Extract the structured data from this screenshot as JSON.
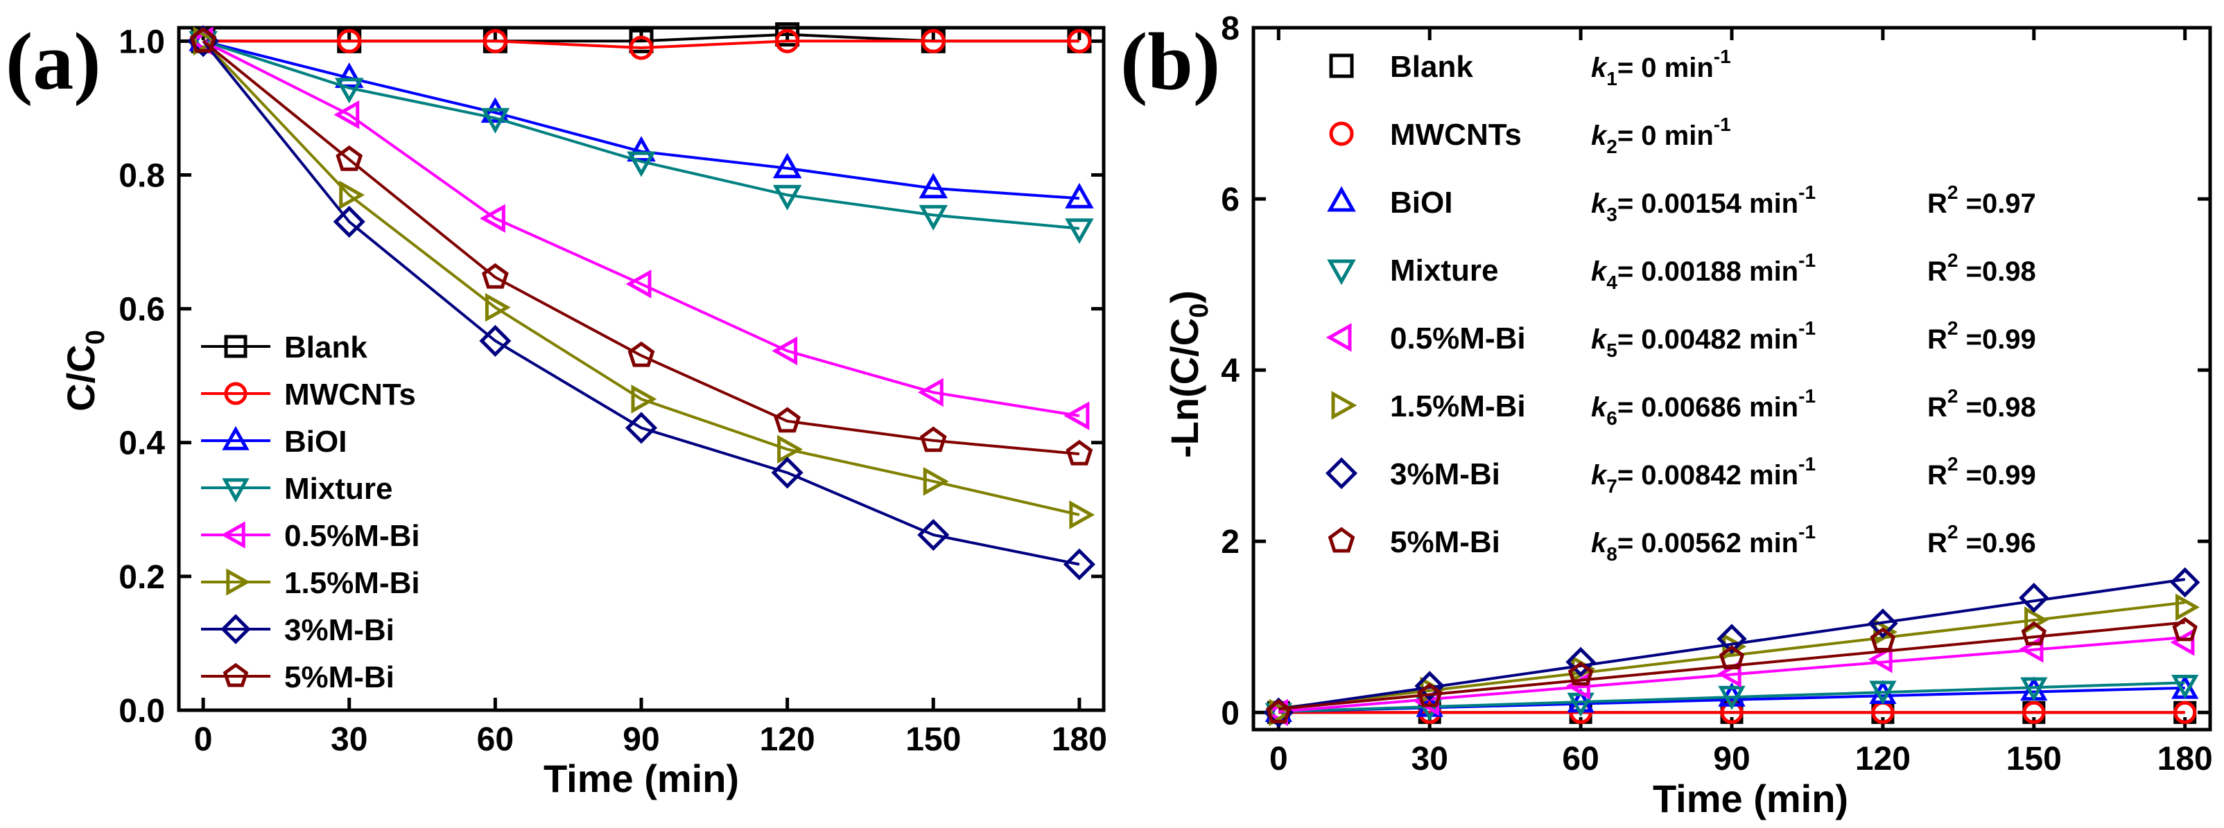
{
  "chart_data": [
    {
      "type": "line",
      "panel_label": "(a)",
      "xlabel": "Time (min)",
      "ylabel": "C/C",
      "ylabel_sub": "0",
      "xlim": [
        -5,
        185
      ],
      "ylim": [
        0.0,
        1.02
      ],
      "xticks": [
        0,
        30,
        60,
        90,
        120,
        150,
        180
      ],
      "yticks": [
        0.0,
        0.2,
        0.4,
        0.6,
        0.8,
        1.0
      ],
      "ytick_labels": [
        "0.0",
        "0.2",
        "0.4",
        "0.6",
        "0.8",
        "1.0"
      ],
      "legend_position": "bottom-left",
      "x": [
        0,
        30,
        60,
        90,
        120,
        150,
        180
      ],
      "series": [
        {
          "name": "Blank",
          "color": "#000000",
          "marker": "square",
          "values": [
            1.0,
            1.0,
            1.0,
            1.0,
            1.01,
            1.0,
            1.0
          ]
        },
        {
          "name": "MWCNTs",
          "color": "#ff0000",
          "marker": "circle",
          "values": [
            1.0,
            1.0,
            1.0,
            0.99,
            1.0,
            1.0,
            1.0
          ]
        },
        {
          "name": "BiOI",
          "color": "#0000ff",
          "marker": "triangle-up",
          "values": [
            1.0,
            0.945,
            0.893,
            0.835,
            0.81,
            0.78,
            0.765
          ]
        },
        {
          "name": "Mixture",
          "color": "#008080",
          "marker": "triangle-down",
          "values": [
            1.0,
            0.93,
            0.885,
            0.82,
            0.77,
            0.74,
            0.72
          ]
        },
        {
          "name": "0.5%M-Bi",
          "color": "#ff00ff",
          "marker": "triangle-left",
          "values": [
            1.0,
            0.89,
            0.735,
            0.637,
            0.537,
            0.475,
            0.44
          ]
        },
        {
          "name": "1.5%M-Bi",
          "color": "#808000",
          "marker": "triangle-right",
          "values": [
            1.0,
            0.77,
            0.602,
            0.465,
            0.39,
            0.342,
            0.292
          ]
        },
        {
          "name": "3%M-Bi",
          "color": "#000080",
          "marker": "diamond",
          "values": [
            1.0,
            0.73,
            0.552,
            0.422,
            0.355,
            0.262,
            0.218
          ]
        },
        {
          "name": "5%M-Bi",
          "color": "#800000",
          "marker": "pentagon",
          "values": [
            1.0,
            0.823,
            0.647,
            0.53,
            0.432,
            0.403,
            0.383
          ]
        }
      ]
    },
    {
      "type": "scatter",
      "panel_label": "(b)",
      "xlabel": "Time (min)",
      "ylabel": "-Ln(C/C",
      "ylabel_sub": "0",
      "ylabel_end": ")",
      "xlim": [
        -5,
        185
      ],
      "ylim": [
        -0.2,
        8.0
      ],
      "xticks": [
        0,
        30,
        60,
        90,
        120,
        150,
        180
      ],
      "yticks": [
        0,
        2,
        4,
        6,
        8
      ],
      "ytick_labels": [
        "0",
        "2",
        "4",
        "6",
        "8"
      ],
      "legend_position": "top-left",
      "x": [
        0,
        30,
        60,
        90,
        120,
        150,
        180
      ],
      "series": [
        {
          "name": "Blank",
          "color": "#000000",
          "marker": "square",
          "k_label": "k",
          "k_sub": "1",
          "k_value": "= 0 min",
          "k_exp": "-1",
          "r2_label": "",
          "r2_value": "",
          "slope": 0.0,
          "intercept": 0.0,
          "values": [
            0,
            0,
            0,
            0,
            0,
            0,
            0
          ]
        },
        {
          "name": "MWCNTs",
          "color": "#ff0000",
          "marker": "circle",
          "k_label": "k",
          "k_sub": "2",
          "k_value": "= 0 min",
          "k_exp": "-1",
          "r2_label": "",
          "r2_value": "",
          "slope": 0.0,
          "intercept": 0.0,
          "values": [
            0,
            0,
            0,
            0,
            0,
            0,
            0
          ]
        },
        {
          "name": "BiOI",
          "color": "#0000ff",
          "marker": "triangle-up",
          "k_label": "k",
          "k_sub": "3",
          "k_value": "= 0.00154 min",
          "k_exp": "-1",
          "r2_label": "R",
          "r2_value": " =0.97",
          "slope": 0.00154,
          "intercept": 0.01,
          "values": [
            0,
            0.06,
            0.11,
            0.18,
            0.21,
            0.25,
            0.27
          ]
        },
        {
          "name": "Mixture",
          "color": "#008080",
          "marker": "triangle-down",
          "k_label": "k",
          "k_sub": "4",
          "k_value": "= 0.00188 min",
          "k_exp": "-1",
          "r2_label": "R",
          "r2_value": " =0.98",
          "slope": 0.00188,
          "intercept": 0.01,
          "values": [
            0,
            0.07,
            0.12,
            0.2,
            0.26,
            0.3,
            0.33
          ]
        },
        {
          "name": "0.5%M-Bi",
          "color": "#ff00ff",
          "marker": "triangle-left",
          "k_label": "k",
          "k_sub": "5",
          "k_value": "= 0.00482 min",
          "k_exp": "-1",
          "r2_label": "R",
          "r2_value": " =0.99",
          "slope": 0.00482,
          "intercept": 0.01,
          "values": [
            0,
            0.12,
            0.31,
            0.45,
            0.62,
            0.74,
            0.82
          ]
        },
        {
          "name": "1.5%M-Bi",
          "color": "#808000",
          "marker": "triangle-right",
          "k_label": "k",
          "k_sub": "6",
          "k_value": "= 0.00686 min",
          "k_exp": "-1",
          "r2_label": "R",
          "r2_value": " =0.98",
          "slope": 0.00686,
          "intercept": 0.05,
          "values": [
            0,
            0.26,
            0.51,
            0.77,
            0.94,
            1.08,
            1.23
          ]
        },
        {
          "name": "3%M-Bi",
          "color": "#000080",
          "marker": "diamond",
          "k_label": "k",
          "k_sub": "7",
          "k_value": "= 0.00842 min",
          "k_exp": "-1",
          "r2_label": "R",
          "r2_value": " =0.99",
          "slope": 0.00842,
          "intercept": 0.04,
          "values": [
            0,
            0.31,
            0.59,
            0.86,
            1.04,
            1.34,
            1.52
          ]
        },
        {
          "name": "5%M-Bi",
          "color": "#800000",
          "marker": "pentagon",
          "k_label": "k",
          "k_sub": "8",
          "k_value": "= 0.00562 min",
          "k_exp": "-1",
          "r2_label": "R",
          "r2_value": " =0.96",
          "slope": 0.00562,
          "intercept": 0.04,
          "values": [
            0,
            0.19,
            0.44,
            0.63,
            0.84,
            0.91,
            0.96
          ]
        }
      ]
    }
  ]
}
